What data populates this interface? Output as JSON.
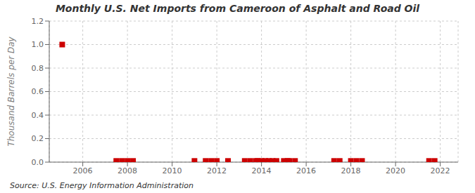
{
  "chart_data": {
    "type": "scatter",
    "title": "Monthly U.S. Net Imports from Cameroon of Asphalt and Road Oil",
    "y_label": "Thousand Barrels per Day",
    "annotations": [
      "Source: U.S. Energy Information Administration"
    ],
    "color": "#cc0000",
    "marker": "square",
    "grid": true,
    "xlim": [
      2004.5,
      2022.8
    ],
    "xticks": [
      2006,
      2008,
      2010,
      2012,
      2014,
      2016,
      2018,
      2020,
      2022
    ],
    "ylim": [
      0.0,
      1.2
    ],
    "yticks": [
      {
        "value": 0,
        "label": "0.0"
      },
      0.2,
      0.4,
      0.6,
      0.8,
      {
        "value": 1,
        "label": "1.0"
      },
      1.2
    ],
    "x": [
      2005.08,
      2007.5,
      2007.75,
      2008.0,
      2008.25,
      2011.0,
      2011.5,
      2011.75,
      2012.0,
      2012.5,
      2013.25,
      2013.5,
      2013.75,
      2013.83,
      2014.0,
      2014.17,
      2014.33,
      2014.5,
      2014.67,
      2015.0,
      2015.17,
      2015.25,
      2015.5,
      2017.25,
      2017.5,
      2018.0,
      2018.25,
      2018.5,
      2021.5,
      2021.75
    ],
    "values": [
      1.0,
      0.01,
      0.01,
      0.01,
      0.01,
      0.01,
      0.01,
      0.01,
      0.01,
      0.01,
      0.01,
      0.01,
      0.01,
      0.01,
      0.01,
      0.01,
      0.01,
      0.01,
      0.01,
      0.01,
      0.01,
      0.01,
      0.01,
      0.01,
      0.01,
      0.01,
      0.01,
      0.01,
      0.01,
      0.01
    ]
  }
}
